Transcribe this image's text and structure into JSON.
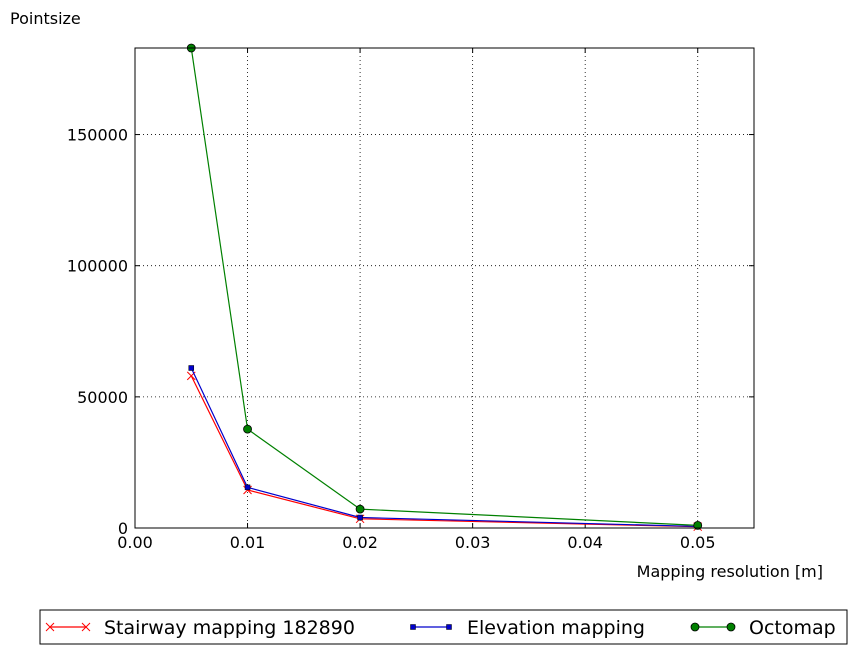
{
  "chart_data": {
    "type": "line",
    "title": "",
    "xlabel": "Mapping resolution [m]",
    "ylabel": "Pointsize",
    "xlim": [
      0.0,
      0.055
    ],
    "ylim": [
      0,
      183000
    ],
    "xticks": [
      0.0,
      0.01,
      0.02,
      0.03,
      0.04,
      0.05
    ],
    "xtick_labels": [
      "0.00",
      "0.01",
      "0.02",
      "0.03",
      "0.04",
      "0.05"
    ],
    "yticks": [
      0,
      50000,
      100000,
      150000
    ],
    "ytick_labels": [
      "0",
      "50000",
      "100000",
      "150000"
    ],
    "grid": true,
    "legend_position": "bottom-outside",
    "series": [
      {
        "name": "Stairway mapping 182890",
        "color": "#ff0000",
        "marker": "x",
        "x": [
          0.005,
          0.01,
          0.02,
          0.05
        ],
        "y": [
          58000,
          14500,
          3500,
          500
        ]
      },
      {
        "name": "Elevation mapping",
        "color": "#0000cc",
        "marker": "square",
        "x": [
          0.005,
          0.01,
          0.02,
          0.05
        ],
        "y": [
          61000,
          15500,
          4000,
          600
        ]
      },
      {
        "name": "Octomap",
        "color": "#008000",
        "marker": "circle",
        "x": [
          0.005,
          0.01,
          0.02,
          0.05
        ],
        "y": [
          183000,
          37700,
          7200,
          1000
        ]
      }
    ]
  }
}
